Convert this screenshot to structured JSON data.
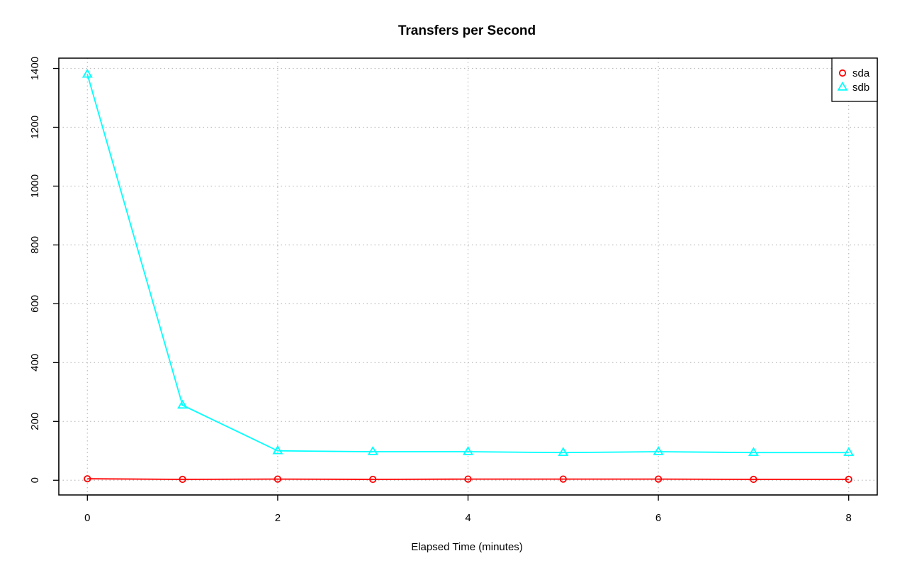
{
  "chart_data": {
    "type": "line",
    "title": "Transfers per Second",
    "xlabel": "Elapsed Time (minutes)",
    "ylabel": "",
    "xlim": [
      -0.3,
      8.3
    ],
    "ylim": [
      -50,
      1435
    ],
    "x_ticks": [
      0,
      2,
      4,
      6,
      8
    ],
    "y_ticks": [
      0,
      200,
      400,
      600,
      800,
      1000,
      1200,
      1400
    ],
    "grid": true,
    "legend_position": "top-right",
    "x": [
      0,
      1,
      2,
      3,
      4,
      5,
      6,
      7,
      8
    ],
    "series": [
      {
        "name": "sda",
        "color": "#ff0000",
        "marker": "circle",
        "values": [
          5,
          3,
          4,
          3,
          4,
          4,
          4,
          3,
          3
        ]
      },
      {
        "name": "sdb",
        "color": "#00ffff",
        "marker": "triangle",
        "values": [
          1380,
          255,
          100,
          97,
          97,
          94,
          97,
          94,
          94
        ]
      }
    ]
  }
}
